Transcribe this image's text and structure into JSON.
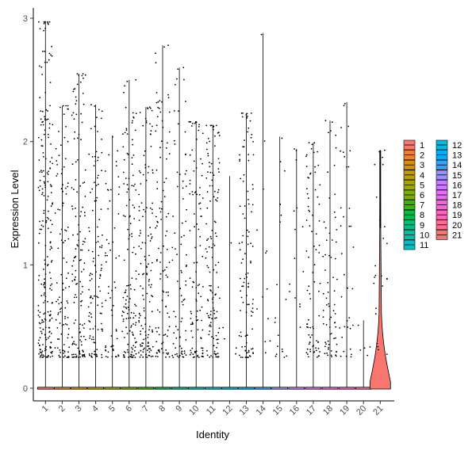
{
  "chart_data": {
    "type": "violin",
    "xlabel": "Identity",
    "ylabel": "Expression Level",
    "categories": [
      "1",
      "2",
      "3",
      "4",
      "5",
      "6",
      "7",
      "8",
      "9",
      "10",
      "11",
      "12",
      "13",
      "14",
      "15",
      "16",
      "17",
      "18",
      "19",
      "20",
      "21"
    ],
    "yticks": [
      0,
      1,
      2,
      3
    ],
    "ylim": [
      -0.05,
      3.05
    ],
    "max_values": [
      2.97,
      2.29,
      2.55,
      2.3,
      2.05,
      2.5,
      2.28,
      2.78,
      2.6,
      2.16,
      2.13,
      1.72,
      2.23,
      2.88,
      2.04,
      1.94,
      1.99,
      2.17,
      2.32,
      0.55,
      1.93
    ],
    "point_density": [
      1.0,
      0.45,
      0.6,
      0.5,
      0.25,
      0.6,
      0.6,
      0.45,
      0.35,
      0.45,
      0.55,
      0.02,
      0.45,
      0.05,
      0.08,
      0.06,
      0.35,
      0.3,
      0.15,
      0.02,
      0.1
    ],
    "colors": [
      "#F8766D",
      "#EA8331",
      "#D89000",
      "#C09B00",
      "#A3A500",
      "#7CAE00",
      "#39B600",
      "#00BB4E",
      "#00BF7D",
      "#00C1A3",
      "#00BFC4",
      "#00BAE0",
      "#00B0F6",
      "#35A2FF",
      "#9590FF",
      "#C77CFF",
      "#E76BF3",
      "#FA62DB",
      "#FF62BC",
      "#FF6C91",
      "#F8766D"
    ],
    "legend": {
      "columns": [
        [
          "1",
          "2",
          "3",
          "4",
          "5",
          "6",
          "7",
          "8",
          "9",
          "10",
          "11"
        ],
        [
          "12",
          "13",
          "14",
          "15",
          "16",
          "17",
          "18",
          "19",
          "20",
          "21"
        ]
      ]
    }
  }
}
